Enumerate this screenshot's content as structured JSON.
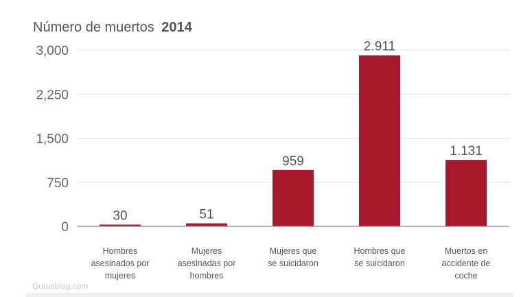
{
  "chart_data": {
    "type": "bar",
    "title": "Número de muertos",
    "title_year": "2014",
    "categories": [
      [
        "Hombres",
        "asesinados por",
        "mujeres"
      ],
      [
        "Mujeres",
        "asesinadas por",
        "hombres"
      ],
      [
        "Mujeres que",
        "se suicidaron"
      ],
      [
        "Hombres que",
        "se suicidaron"
      ],
      [
        "Muertos en",
        "accidente de",
        "coche"
      ]
    ],
    "values": [
      30,
      51,
      959,
      2911,
      1131
    ],
    "value_labels": [
      "30",
      "51",
      "959",
      "2.911",
      "1.131"
    ],
    "ylim": [
      0,
      3000
    ],
    "yticks": [
      0,
      750,
      1500,
      2250,
      3000
    ],
    "ytick_labels": [
      "0",
      "750",
      "1,500",
      "2,250",
      "3,000"
    ],
    "grid": true,
    "bar_color": "#a8182c",
    "watermark": "Gurusblog.com"
  }
}
